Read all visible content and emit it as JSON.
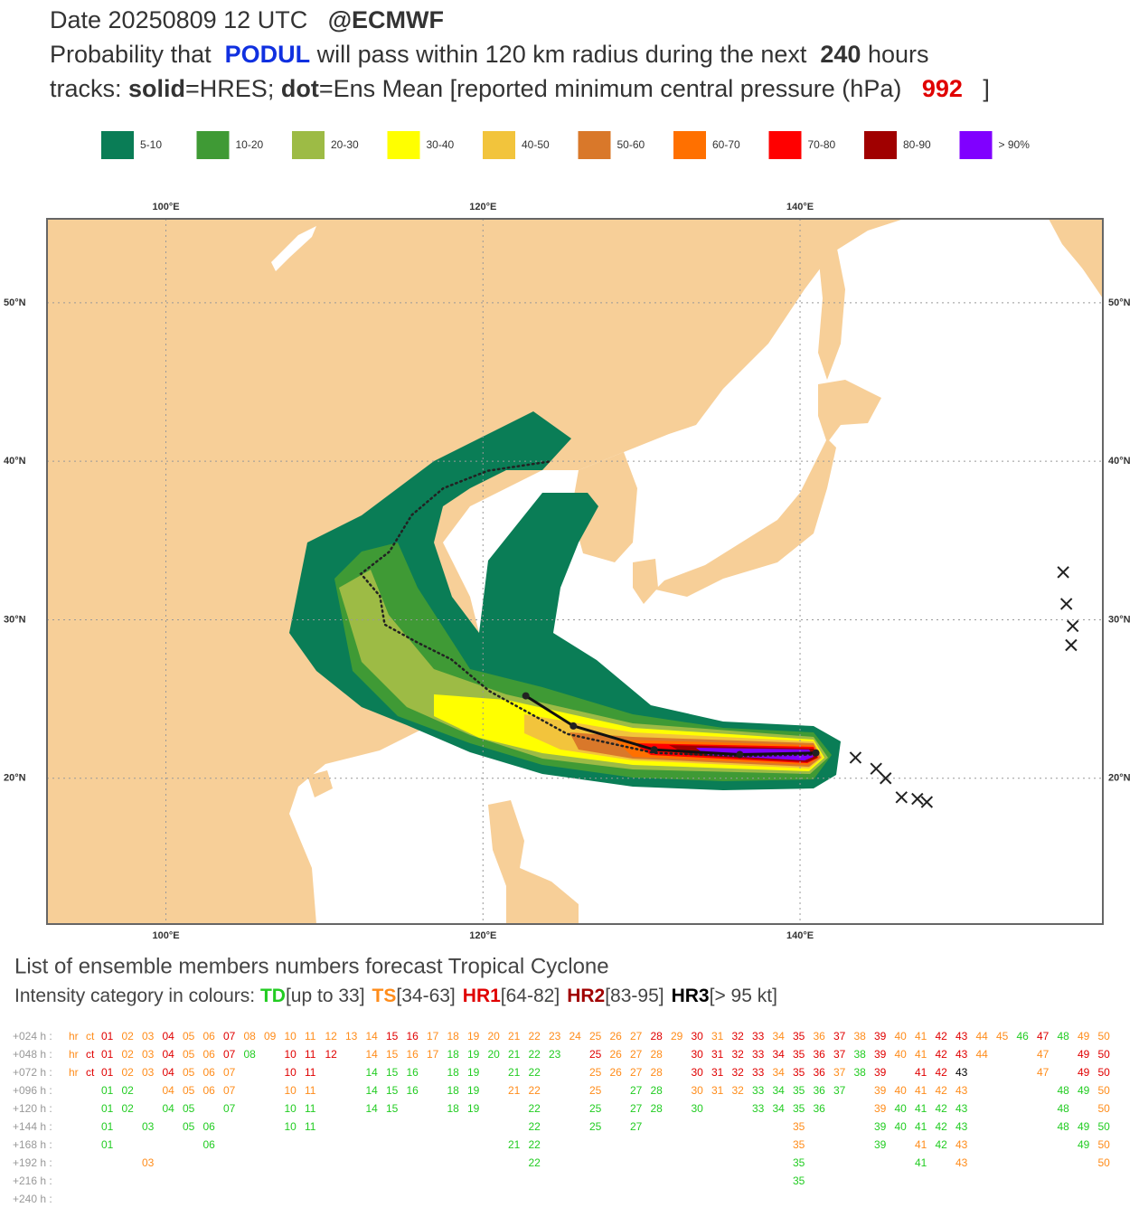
{
  "header": {
    "lines": [
      [
        {
          "text": "Date 20250809 12 UTC"
        },
        {
          "text": "   @ECMWF",
          "bold": true
        }
      ],
      [
        {
          "text": "Probability that  "
        },
        {
          "text": "PODUL",
          "bold": true,
          "color": "#1030e0"
        },
        {
          "text": " will pass within 120 km radius during the next  "
        },
        {
          "text": "240",
          "bold": true
        },
        {
          "text": " hours"
        }
      ],
      [
        {
          "text": "tracks: "
        },
        {
          "text": "solid",
          "bold": true
        },
        {
          "text": "=HRES; "
        },
        {
          "text": "dot",
          "bold": true
        },
        {
          "text": "=Ens Mean [reported minimum central pressure (hPa)   "
        },
        {
          "text": "992",
          "bold": true,
          "color": "#e00000"
        },
        {
          "text": "   ]"
        }
      ]
    ]
  },
  "legend": {
    "items": [
      {
        "label": "5-10",
        "color": "#0a7d56"
      },
      {
        "label": "10-20",
        "color": "#3f9a35"
      },
      {
        "label": "20-30",
        "color": "#9dbb45"
      },
      {
        "label": "30-40",
        "color": "#ffff00"
      },
      {
        "label": "40-50",
        "color": "#f2c43c"
      },
      {
        "label": "50-60",
        "color": "#d9782a"
      },
      {
        "label": "60-70",
        "color": "#ff7000"
      },
      {
        "label": "70-80",
        "color": "#ff0000"
      },
      {
        "label": "80-90",
        "color": "#a00000"
      },
      {
        "label": "> 90%",
        "color": "#8000ff"
      }
    ]
  },
  "map": {
    "xlim": [
      92.5,
      159.1
    ],
    "ylim": [
      10.8,
      55.3
    ],
    "xticks": [
      {
        "value": 100,
        "label": "100°E"
      },
      {
        "value": 120,
        "label": "120°E"
      },
      {
        "value": 140,
        "label": "140°E"
      }
    ],
    "yticks": [
      {
        "value": 20,
        "label": "20°N"
      },
      {
        "value": 30,
        "label": "30°N"
      },
      {
        "value": 40,
        "label": "40°N"
      },
      {
        "value": 50,
        "label": "50°N"
      }
    ],
    "grid": true,
    "land_color": "#f7cf98",
    "hres_track": {
      "lon": [
        141.0,
        136.2,
        130.8,
        125.7,
        122.7
      ],
      "lat": [
        21.6,
        21.5,
        21.8,
        23.3,
        25.2
      ]
    },
    "ens_mean_track": {
      "lon": [
        141.0,
        136.2,
        130.8,
        125.3,
        120.4,
        118.0,
        115.8,
        113.8,
        113.5,
        112.3,
        114.1,
        115.5,
        117.5,
        120.3,
        124.3
      ],
      "lat": [
        21.5,
        21.4,
        21.6,
        22.8,
        25.5,
        27.5,
        28.6,
        29.7,
        31.5,
        32.9,
        34.3,
        36.6,
        38.3,
        39.4,
        40.0
      ]
    },
    "crosses": {
      "lon": [
        156.6,
        156.8,
        157.2,
        157.1,
        143.5,
        144.8,
        145.4,
        146.4,
        147.4,
        148.0
      ],
      "lat": [
        33.0,
        31.0,
        29.6,
        28.4,
        21.3,
        20.6,
        20.0,
        18.8,
        18.7,
        18.5
      ]
    }
  },
  "members": {
    "title": "List of ensemble members numbers forecast Tropical Cyclone",
    "intensity_prefix": "Intensity category in colours: ",
    "categories": [
      {
        "code": "TD",
        "range": "[up to 33]",
        "color": "#22cc22"
      },
      {
        "code": "TS",
        "range": "[34-63]",
        "color": "#ff8c1a"
      },
      {
        "code": "HR1",
        "range": "[64-82]",
        "color": "#e00000"
      },
      {
        "code": "HR2",
        "range": "[83-95]",
        "color": "#a00000"
      },
      {
        "code": "HR3",
        "range": "[> 95 kt]",
        "color": "#000000"
      }
    ],
    "rows": [
      {
        "label": "+024 h :",
        "members": [
          "hr",
          "ct",
          "01",
          "02",
          "03",
          "04",
          "05",
          "06",
          "07",
          "08",
          "09",
          "10",
          "11",
          "12",
          "13",
          "14",
          "15",
          "16",
          "17",
          "18",
          "19",
          "20",
          "21",
          "22",
          "23",
          "24",
          "25",
          "26",
          "27",
          "28",
          "29",
          "30",
          "31",
          "32",
          "33",
          "34",
          "35",
          "36",
          "37",
          "38",
          "39",
          "40",
          "41",
          "42",
          "43",
          "44",
          "45",
          "46",
          "47",
          "48",
          "49",
          "50"
        ],
        "intensity": [
          "TS",
          "TS",
          "HR1",
          "TS",
          "TS",
          "HR1",
          "TS",
          "TS",
          "HR1",
          "TS",
          "TS",
          "TS",
          "TS",
          "TS",
          "TS",
          "TS",
          "HR1",
          "HR1",
          "TS",
          "TS",
          "TS",
          "TS",
          "TS",
          "TS",
          "TS",
          "TS",
          "TS",
          "TS",
          "TS",
          "HR1",
          "TS",
          "HR1",
          "TS",
          "HR1",
          "HR1",
          "TS",
          "HR1",
          "TS",
          "HR1",
          "TS",
          "HR1",
          "TS",
          "TS",
          "HR1",
          "HR1",
          "TS",
          "TS",
          "TD",
          "HR1",
          "TD",
          "TS",
          "TS"
        ]
      },
      {
        "label": "+048 h :",
        "members": [
          "hr",
          "ct",
          "01",
          "02",
          "03",
          "04",
          "05",
          "06",
          "07",
          "08",
          "10",
          "11",
          "12",
          "14",
          "15",
          "16",
          "17",
          "18",
          "19",
          "20",
          "21",
          "22",
          "23",
          "25",
          "26",
          "27",
          "28",
          "30",
          "31",
          "32",
          "33",
          "34",
          "35",
          "36",
          "37",
          "38",
          "39",
          "40",
          "41",
          "42",
          "43",
          "44",
          "47",
          "49",
          "50"
        ],
        "intensity": [
          "TS",
          "HR1",
          "HR1",
          "TS",
          "TS",
          "HR1",
          "TS",
          "TS",
          "HR1",
          "TD",
          "HR1",
          "HR1",
          "HR1",
          "TS",
          "TS",
          "TS",
          "TS",
          "TD",
          "TD",
          "TD",
          "TD",
          "TD",
          "TD",
          "HR1",
          "TS",
          "TS",
          "TS",
          "HR1",
          "HR1",
          "HR1",
          "HR1",
          "HR1",
          "HR1",
          "HR1",
          "HR1",
          "TD",
          "HR1",
          "TS",
          "TS",
          "HR1",
          "HR1",
          "TS",
          "TS",
          "HR1",
          "HR1"
        ]
      },
      {
        "label": "+072 h :",
        "members": [
          "hr",
          "ct",
          "01",
          "02",
          "03",
          "04",
          "05",
          "06",
          "07",
          "10",
          "11",
          "14",
          "15",
          "16",
          "18",
          "19",
          "21",
          "22",
          "25",
          "26",
          "27",
          "28",
          "30",
          "31",
          "32",
          "33",
          "34",
          "35",
          "36",
          "37",
          "38",
          "39",
          "41",
          "42",
          "43",
          "47",
          "49",
          "50"
        ],
        "intensity": [
          "TS",
          "HR1",
          "HR1",
          "TS",
          "TS",
          "HR1",
          "TS",
          "TS",
          "TS",
          "HR1",
          "HR1",
          "TD",
          "TD",
          "TD",
          "TD",
          "TD",
          "TD",
          "TD",
          "TS",
          "TS",
          "TS",
          "TS",
          "HR1",
          "HR1",
          "HR1",
          "HR1",
          "TS",
          "HR1",
          "HR1",
          "TS",
          "TD",
          "HR1",
          "HR1",
          "HR1",
          "HR3",
          "TS",
          "HR1",
          "HR1"
        ]
      },
      {
        "label": "+096 h :",
        "members": [
          "01",
          "02",
          "04",
          "05",
          "06",
          "07",
          "10",
          "11",
          "14",
          "15",
          "16",
          "18",
          "19",
          "21",
          "22",
          "25",
          "27",
          "28",
          "30",
          "31",
          "32",
          "33",
          "34",
          "35",
          "36",
          "37",
          "39",
          "40",
          "41",
          "42",
          "43",
          "48",
          "49",
          "50"
        ],
        "intensity": [
          "TD",
          "TD",
          "TS",
          "TS",
          "TS",
          "TS",
          "TS",
          "TS",
          "TD",
          "TD",
          "TD",
          "TD",
          "TD",
          "TS",
          "TS",
          "TS",
          "TD",
          "TD",
          "TS",
          "TS",
          "TS",
          "TD",
          "TD",
          "TD",
          "TD",
          "TD",
          "TS",
          "TS",
          "TS",
          "TS",
          "TS",
          "TD",
          "TD",
          "TS"
        ]
      },
      {
        "label": "+120 h :",
        "members": [
          "01",
          "02",
          "04",
          "05",
          "07",
          "10",
          "11",
          "14",
          "15",
          "18",
          "19",
          "22",
          "25",
          "27",
          "28",
          "30",
          "33",
          "34",
          "35",
          "36",
          "39",
          "40",
          "41",
          "42",
          "43",
          "48",
          "50"
        ],
        "intensity": [
          "TD",
          "TD",
          "TD",
          "TD",
          "TD",
          "TD",
          "TD",
          "TD",
          "TD",
          "TD",
          "TD",
          "TD",
          "TD",
          "TD",
          "TD",
          "TD",
          "TD",
          "TD",
          "TD",
          "TD",
          "TS",
          "TD",
          "TD",
          "TD",
          "TD",
          "TD",
          "TS"
        ]
      },
      {
        "label": "+144 h :",
        "members": [
          "01",
          "03",
          "05",
          "06",
          "10",
          "11",
          "22",
          "25",
          "27",
          "35",
          "39",
          "40",
          "41",
          "42",
          "43",
          "48",
          "49",
          "50"
        ],
        "intensity": [
          "TD",
          "TD",
          "TD",
          "TD",
          "TD",
          "TD",
          "TD",
          "TD",
          "TD",
          "TS",
          "TD",
          "TD",
          "TD",
          "TD",
          "TD",
          "TD",
          "TD",
          "TD"
        ]
      },
      {
        "label": "+168 h :",
        "members": [
          "01",
          "06",
          "21",
          "22",
          "35",
          "39",
          "41",
          "42",
          "43",
          "49",
          "50"
        ],
        "intensity": [
          "TD",
          "TD",
          "TD",
          "TD",
          "TS",
          "TD",
          "TS",
          "TD",
          "TS",
          "TD",
          "TS"
        ]
      },
      {
        "label": "+192 h :",
        "members": [
          "03",
          "22",
          "35",
          "41",
          "43",
          "50"
        ],
        "intensity": [
          "TS",
          "TD",
          "TD",
          "TD",
          "TS",
          "TS"
        ]
      },
      {
        "label": "+216 h :",
        "members": [
          "35"
        ],
        "intensity": [
          "TD"
        ]
      },
      {
        "label": "+240 h :",
        "members": [],
        "intensity": []
      }
    ]
  }
}
